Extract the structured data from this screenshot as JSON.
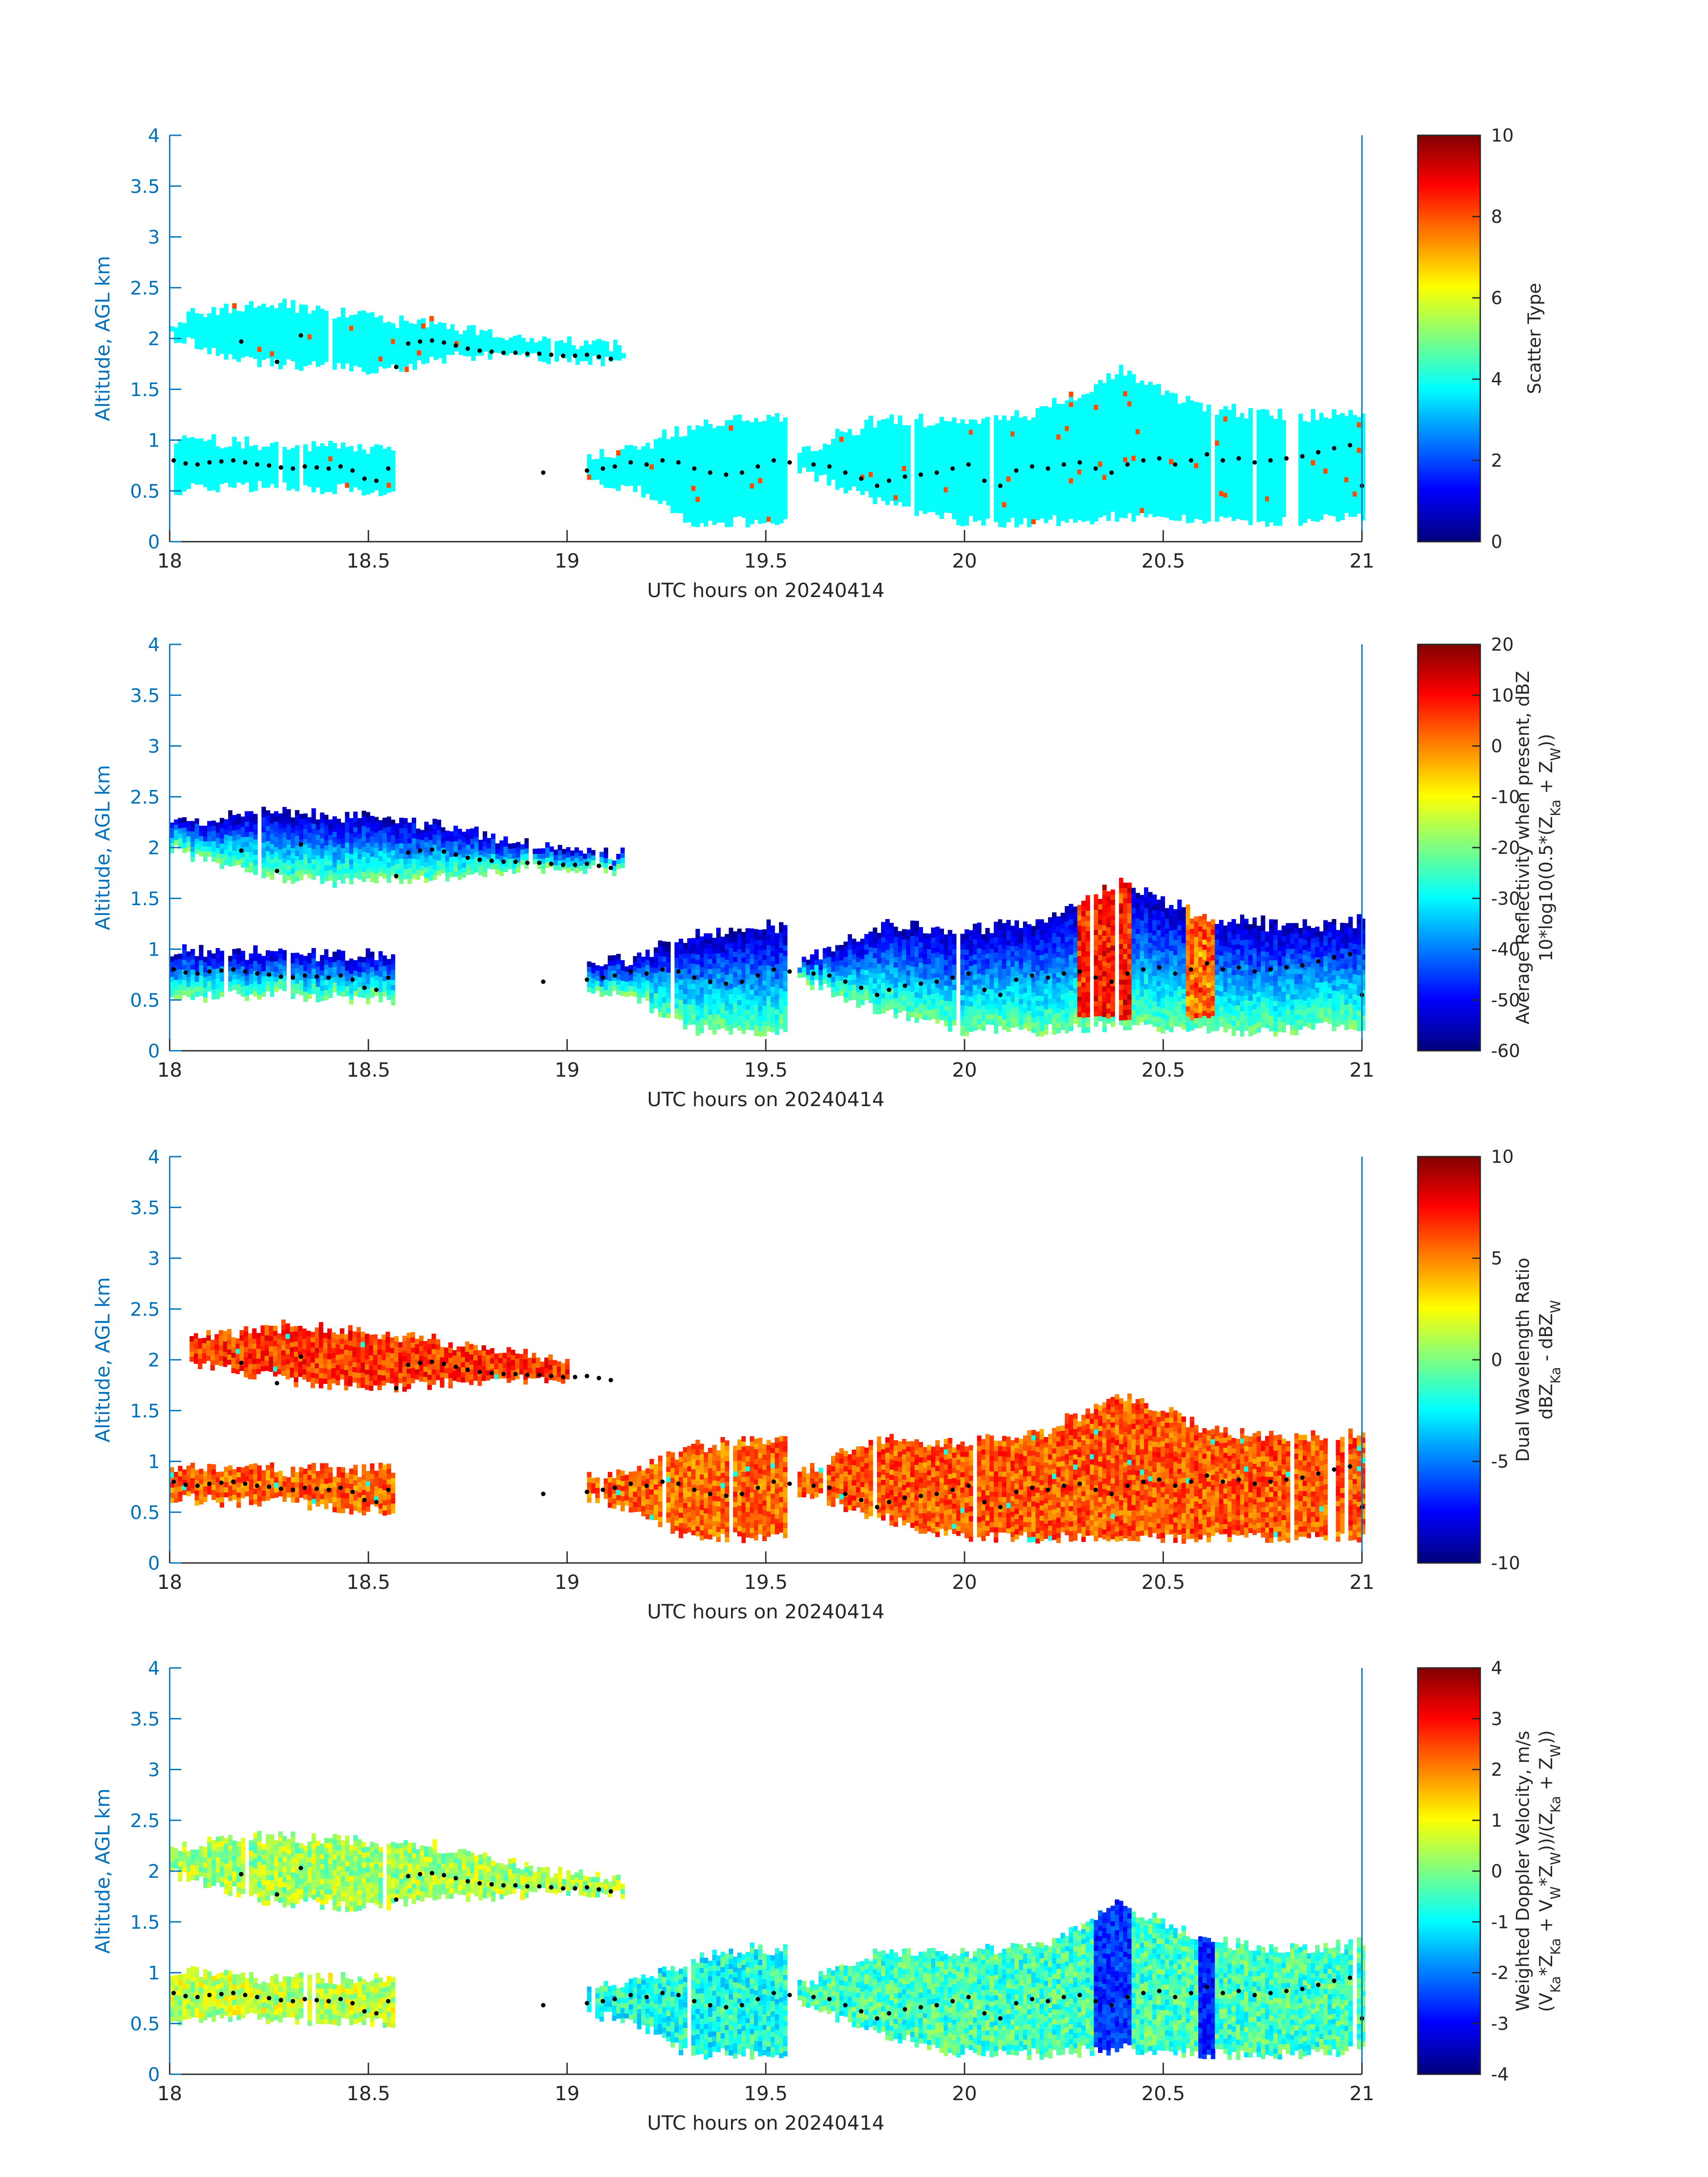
{
  "colors": {
    "axis_blue": "#0072BD",
    "axis_black": "#262626",
    "marker": "#000000",
    "colormap": "jet"
  },
  "chart_data": [
    {
      "type": "heatmap",
      "id": "scatter-type",
      "xlabel": "UTC hours on 20240414",
      "ylabel": "Altitude, AGL km",
      "xlim": [
        18,
        21
      ],
      "ylim": [
        0,
        4
      ],
      "xticks": [
        "18",
        "18.5",
        "19",
        "19.5",
        "20",
        "20.5",
        "21"
      ],
      "yticks": [
        "0",
        "0.5",
        "1",
        "1.5",
        "2",
        "2.5",
        "3",
        "3.5",
        "4"
      ],
      "colorbar": {
        "label_lines": [
          "Scatter Type"
        ],
        "range": [
          0,
          10
        ],
        "ticks": [
          "0",
          "2",
          "4",
          "6",
          "8",
          "10"
        ]
      },
      "field": "scatter",
      "layers": [
        {
          "x": [
            18.0,
            18.58
          ],
          "top": [
            2.15,
            2.28,
            2.3,
            2.22,
            2.15
          ],
          "bottom": [
            2.03,
            1.8,
            1.75,
            1.7,
            1.72
          ],
          "value": 3.8
        },
        {
          "x": [
            18.58,
            19.14
          ],
          "top": [
            2.2,
            2.05,
            1.98,
            1.94,
            1.9
          ],
          "bottom": [
            1.7,
            1.85,
            1.82,
            1.78,
            1.78
          ],
          "value": 3.8
        },
        {
          "x": [
            18.0,
            18.56
          ],
          "top": [
            0.98,
            0.95,
            0.93,
            0.92,
            0.9
          ],
          "bottom": [
            0.5,
            0.55,
            0.55,
            0.52,
            0.5
          ],
          "value": 3.8
        },
        {
          "x": [
            19.05,
            19.55
          ],
          "top": [
            0.8,
            0.9,
            1.1,
            1.2,
            1.2
          ],
          "bottom": [
            0.6,
            0.5,
            0.2,
            0.2,
            0.2
          ],
          "value": 3.8
        },
        {
          "x": [
            19.58,
            21.0
          ],
          "top": [
            0.85,
            1.2,
            1.15,
            1.25,
            1.65,
            1.3,
            1.2,
            1.25
          ],
          "bottom": [
            0.7,
            0.4,
            0.2,
            0.2,
            0.25,
            0.2,
            0.2,
            0.25
          ],
          "value": 3.8
        }
      ],
      "layer_note": ""
    },
    {
      "type": "heatmap",
      "id": "reflectivity",
      "xlabel": "UTC hours on 20240414",
      "ylabel": "Altitude, AGL km",
      "xlim": [
        18,
        21
      ],
      "ylim": [
        0,
        4
      ],
      "xticks": [
        "18",
        "18.5",
        "19",
        "19.5",
        "20",
        "20.5",
        "21"
      ],
      "yticks": [
        "0",
        "0.5",
        "1",
        "1.5",
        "2",
        "2.5",
        "3",
        "3.5",
        "4"
      ],
      "colorbar": {
        "label_lines": [
          "Average Reflectivity when present, dBZ",
          "10*log10(0.5*(Z_Ka + Z_W))"
        ],
        "range": [
          -60,
          20
        ],
        "ticks": [
          "-60",
          "-50",
          "-40",
          "-30",
          "-20",
          "-10",
          "0",
          "10",
          "20"
        ]
      },
      "field": "reflectivity",
      "layers": [
        {
          "x": [
            18.0,
            19.14
          ],
          "top": [
            2.2,
            2.32,
            2.28,
            2.2,
            2.0,
            1.9
          ],
          "bottom": [
            1.98,
            1.72,
            1.65,
            1.72,
            1.78,
            1.78
          ],
          "value": -35
        },
        {
          "x": [
            18.0,
            18.56
          ],
          "top": [
            0.98,
            0.95,
            0.93,
            0.92,
            0.9
          ],
          "bottom": [
            0.5,
            0.55,
            0.55,
            0.52,
            0.5
          ],
          "value": -38
        },
        {
          "x": [
            19.05,
            19.55
          ],
          "top": [
            0.8,
            0.9,
            1.1,
            1.2,
            1.2
          ],
          "bottom": [
            0.6,
            0.5,
            0.2,
            0.2,
            0.2
          ],
          "value": -30
        },
        {
          "x": [
            19.58,
            21.0
          ],
          "top": [
            0.85,
            1.2,
            1.15,
            1.25,
            1.65,
            1.3,
            1.2,
            1.25
          ],
          "bottom": [
            0.7,
            0.4,
            0.2,
            0.2,
            0.25,
            0.2,
            0.2,
            0.25
          ],
          "value": -25
        }
      ],
      "hotspots": [
        {
          "x": [
            20.28,
            20.42
          ],
          "value": 8
        },
        {
          "x": [
            20.55,
            20.62
          ],
          "value": 2
        }
      ]
    },
    {
      "type": "heatmap",
      "id": "dual-wavelength-ratio",
      "xlabel": "UTC hours on 20240414",
      "ylabel": "Altitude, AGL km",
      "xlim": [
        18,
        21
      ],
      "ylim": [
        0,
        4
      ],
      "xticks": [
        "18",
        "18.5",
        "19",
        "19.5",
        "20",
        "20.5",
        "21"
      ],
      "yticks": [
        "0",
        "0.5",
        "1",
        "1.5",
        "2",
        "2.5",
        "3",
        "3.5",
        "4"
      ],
      "colorbar": {
        "label_lines": [
          "Dual Wavelength Ratio",
          "dBZ_Ka - dBZ_W"
        ],
        "range": [
          -10,
          10
        ],
        "ticks": [
          "-10",
          "-5",
          "0",
          "5",
          "10"
        ]
      },
      "field": "dwr",
      "layers": [
        {
          "x": [
            18.05,
            19.0
          ],
          "top": [
            2.2,
            2.3,
            2.25,
            2.1,
            1.95
          ],
          "bottom": [
            1.98,
            1.8,
            1.72,
            1.8,
            1.82
          ],
          "value": 6.5
        },
        {
          "x": [
            18.0,
            18.56
          ],
          "top": [
            0.9,
            0.92,
            0.9,
            0.88,
            0.9
          ],
          "bottom": [
            0.65,
            0.6,
            0.6,
            0.55,
            0.5
          ],
          "value": 5.5
        },
        {
          "x": [
            19.05,
            19.55
          ],
          "top": [
            0.8,
            0.9,
            1.1,
            1.2,
            1.2
          ],
          "bottom": [
            0.65,
            0.5,
            0.25,
            0.25,
            0.25
          ],
          "value": 5.5
        },
        {
          "x": [
            19.58,
            21.0
          ],
          "top": [
            0.85,
            1.2,
            1.15,
            1.25,
            1.65,
            1.3,
            1.2,
            1.25
          ],
          "bottom": [
            0.7,
            0.45,
            0.25,
            0.25,
            0.25,
            0.25,
            0.25,
            0.25
          ],
          "value": 5.8
        }
      ]
    },
    {
      "type": "heatmap",
      "id": "doppler-velocity",
      "xlabel": "UTC hours on 20240414",
      "ylabel": "Altitude, AGL km",
      "xlim": [
        18,
        21
      ],
      "ylim": [
        0,
        4
      ],
      "xticks": [
        "18",
        "18.5",
        "19",
        "19.5",
        "20",
        "20.5",
        "21"
      ],
      "yticks": [
        "0",
        "0.5",
        "1",
        "1.5",
        "2",
        "2.5",
        "3",
        "3.5",
        "4"
      ],
      "colorbar": {
        "label_lines": [
          "Weighted Doppler Velocity, m/s",
          "(V_Ka*Z_Ka + V_W*Z_W))/(Z_Ka + Z_W))"
        ],
        "range": [
          -4,
          4
        ],
        "ticks": [
          "-4",
          "-3",
          "-2",
          "-1",
          "0",
          "1",
          "2",
          "3",
          "4"
        ]
      },
      "field": "velocity",
      "layers": [
        {
          "x": [
            18.0,
            19.14
          ],
          "top": [
            2.2,
            2.32,
            2.28,
            2.2,
            2.0,
            1.9
          ],
          "bottom": [
            1.98,
            1.72,
            1.65,
            1.72,
            1.78,
            1.78
          ],
          "value": 0.3
        },
        {
          "x": [
            18.0,
            18.56
          ],
          "top": [
            0.98,
            0.95,
            0.93,
            0.92,
            0.9
          ],
          "bottom": [
            0.5,
            0.55,
            0.55,
            0.52,
            0.5
          ],
          "value": 0.5
        },
        {
          "x": [
            19.05,
            19.55
          ],
          "top": [
            0.8,
            0.9,
            1.1,
            1.2,
            1.2
          ],
          "bottom": [
            0.6,
            0.5,
            0.2,
            0.2,
            0.2
          ],
          "value": -0.8
        },
        {
          "x": [
            19.58,
            21.0
          ],
          "top": [
            0.85,
            1.2,
            1.15,
            1.25,
            1.65,
            1.3,
            1.2,
            1.25
          ],
          "bottom": [
            0.7,
            0.4,
            0.2,
            0.2,
            0.25,
            0.2,
            0.2,
            0.25
          ],
          "value": -0.5
        }
      ],
      "hotspots": [
        {
          "x": [
            20.32,
            20.42
          ],
          "value": -2.6
        },
        {
          "x": [
            20.58,
            20.62
          ],
          "value": -2.8
        }
      ]
    }
  ],
  "cloud_top_markers": {
    "upper": [
      [
        18.18,
        1.97
      ],
      [
        18.27,
        1.77
      ],
      [
        18.33,
        2.03
      ],
      [
        18.57,
        1.72
      ],
      [
        18.6,
        1.95
      ],
      [
        18.63,
        1.97
      ],
      [
        18.66,
        1.98
      ],
      [
        18.69,
        1.96
      ],
      [
        18.72,
        1.93
      ],
      [
        18.75,
        1.9
      ],
      [
        18.78,
        1.88
      ],
      [
        18.81,
        1.87
      ],
      [
        18.84,
        1.86
      ],
      [
        18.87,
        1.86
      ],
      [
        18.9,
        1.85
      ],
      [
        18.93,
        1.85
      ],
      [
        18.96,
        1.84
      ],
      [
        18.99,
        1.83
      ],
      [
        19.02,
        1.83
      ],
      [
        19.05,
        1.84
      ],
      [
        19.08,
        1.82
      ],
      [
        19.11,
        1.8
      ]
    ],
    "lower": [
      [
        18.01,
        0.8
      ],
      [
        18.04,
        0.77
      ],
      [
        18.07,
        0.76
      ],
      [
        18.1,
        0.78
      ],
      [
        18.13,
        0.79
      ],
      [
        18.16,
        0.8
      ],
      [
        18.19,
        0.78
      ],
      [
        18.22,
        0.76
      ],
      [
        18.25,
        0.75
      ],
      [
        18.28,
        0.73
      ],
      [
        18.31,
        0.72
      ],
      [
        18.34,
        0.74
      ],
      [
        18.37,
        0.73
      ],
      [
        18.4,
        0.72
      ],
      [
        18.43,
        0.74
      ],
      [
        18.46,
        0.7
      ],
      [
        18.49,
        0.62
      ],
      [
        18.52,
        0.6
      ],
      [
        18.55,
        0.72
      ],
      [
        18.94,
        0.68
      ],
      [
        19.05,
        0.7
      ],
      [
        19.09,
        0.72
      ],
      [
        19.12,
        0.74
      ],
      [
        19.16,
        0.78
      ],
      [
        19.2,
        0.76
      ],
      [
        19.24,
        0.8
      ],
      [
        19.28,
        0.78
      ],
      [
        19.32,
        0.72
      ],
      [
        19.36,
        0.68
      ],
      [
        19.4,
        0.66
      ],
      [
        19.44,
        0.68
      ],
      [
        19.48,
        0.74
      ],
      [
        19.52,
        0.8
      ],
      [
        19.56,
        0.78
      ],
      [
        19.62,
        0.76
      ],
      [
        19.66,
        0.74
      ],
      [
        19.7,
        0.68
      ],
      [
        19.74,
        0.62
      ],
      [
        19.78,
        0.55
      ],
      [
        19.81,
        0.6
      ],
      [
        19.85,
        0.64
      ],
      [
        19.89,
        0.66
      ],
      [
        19.93,
        0.68
      ],
      [
        19.97,
        0.72
      ],
      [
        20.01,
        0.76
      ],
      [
        20.05,
        0.6
      ],
      [
        20.09,
        0.55
      ],
      [
        20.13,
        0.7
      ],
      [
        20.17,
        0.74
      ],
      [
        20.21,
        0.72
      ],
      [
        20.25,
        0.76
      ],
      [
        20.29,
        0.78
      ],
      [
        20.33,
        0.72
      ],
      [
        20.37,
        0.68
      ],
      [
        20.41,
        0.76
      ],
      [
        20.45,
        0.8
      ],
      [
        20.49,
        0.82
      ],
      [
        20.53,
        0.76
      ],
      [
        20.57,
        0.8
      ],
      [
        20.61,
        0.86
      ],
      [
        20.65,
        0.8
      ],
      [
        20.69,
        0.82
      ],
      [
        20.73,
        0.78
      ],
      [
        20.77,
        0.8
      ],
      [
        20.81,
        0.82
      ],
      [
        20.85,
        0.84
      ],
      [
        20.89,
        0.88
      ],
      [
        20.93,
        0.92
      ],
      [
        20.97,
        0.95
      ],
      [
        21.0,
        0.55
      ]
    ]
  }
}
